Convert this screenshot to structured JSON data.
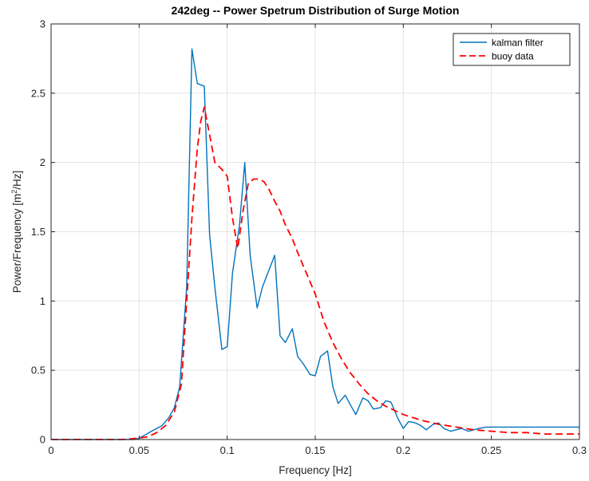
{
  "chart_data": {
    "type": "line",
    "title": "242deg -- Power Spetrum Distribution of Surge Motion",
    "xlabel": "Frequency [Hz]",
    "ylabel_parts": {
      "pre": "Power/Frequency [m",
      "sup": "2",
      "post": "/Hz]"
    },
    "xlim": [
      0,
      0.3
    ],
    "ylim": [
      0,
      3
    ],
    "xticks": [
      "0",
      "0.05",
      "0.1",
      "0.15",
      "0.2",
      "0.25",
      "0.3"
    ],
    "yticks": [
      "0",
      "0.5",
      "1",
      "1.5",
      "2",
      "2.5",
      "3"
    ],
    "grid": true,
    "legend_position": "top-right",
    "series": [
      {
        "name": "kalman filter",
        "color": "#0072BD",
        "style": "solid",
        "x": [
          0.0,
          0.003,
          0.007,
          0.01,
          0.013,
          0.017,
          0.02,
          0.023,
          0.027,
          0.03,
          0.033,
          0.037,
          0.04,
          0.043,
          0.047,
          0.05,
          0.053,
          0.057,
          0.06,
          0.063,
          0.067,
          0.07,
          0.073,
          0.077,
          0.08,
          0.083,
          0.087,
          0.09,
          0.093,
          0.097,
          0.1,
          0.103,
          0.107,
          0.11,
          0.113,
          0.117,
          0.12,
          0.123,
          0.127,
          0.13,
          0.133,
          0.137,
          0.14,
          0.143,
          0.147,
          0.15,
          0.153,
          0.157,
          0.16,
          0.163,
          0.167,
          0.17,
          0.173,
          0.177,
          0.18,
          0.183,
          0.187,
          0.19,
          0.193,
          0.197,
          0.2,
          0.203,
          0.207,
          0.21,
          0.213,
          0.217,
          0.22,
          0.223,
          0.227,
          0.23,
          0.233,
          0.237,
          0.24,
          0.243,
          0.247,
          0.25,
          0.253,
          0.257,
          0.26,
          0.263,
          0.267,
          0.27,
          0.273,
          0.277,
          0.28,
          0.283,
          0.287,
          0.29,
          0.293,
          0.297,
          0.3
        ],
        "y": [
          0.0,
          0.0,
          0.0,
          0.0,
          0.0,
          0.0,
          0.0,
          0.0,
          0.0,
          0.0,
          0.0,
          0.0,
          0.0,
          0.0,
          0.0,
          0.01,
          0.03,
          0.06,
          0.08,
          0.1,
          0.16,
          0.23,
          0.38,
          1.1,
          2.82,
          2.57,
          2.55,
          1.48,
          1.1,
          0.65,
          0.67,
          1.2,
          1.55,
          2.0,
          1.33,
          0.95,
          1.1,
          1.2,
          1.33,
          0.75,
          0.7,
          0.8,
          0.6,
          0.55,
          0.47,
          0.46,
          0.6,
          0.64,
          0.38,
          0.26,
          0.32,
          0.25,
          0.18,
          0.3,
          0.28,
          0.22,
          0.23,
          0.28,
          0.27,
          0.15,
          0.08,
          0.13,
          0.12,
          0.1,
          0.07,
          0.11,
          0.12,
          0.08,
          0.06,
          0.07,
          0.08,
          0.06,
          0.07,
          0.08,
          0.09,
          0.09,
          0.09,
          0.09,
          0.09,
          0.09,
          0.09,
          0.09,
          0.09,
          0.09,
          0.09,
          0.09,
          0.09,
          0.09,
          0.09,
          0.09,
          0.09
        ]
      },
      {
        "name": "buoy data",
        "color": "#FF0000",
        "style": "dashed",
        "x": [
          0.0,
          0.02,
          0.04,
          0.05,
          0.055,
          0.06,
          0.065,
          0.07,
          0.074,
          0.077,
          0.08,
          0.083,
          0.085,
          0.087,
          0.09,
          0.093,
          0.097,
          0.1,
          0.103,
          0.106,
          0.109,
          0.112,
          0.115,
          0.118,
          0.121,
          0.124,
          0.127,
          0.13,
          0.133,
          0.137,
          0.14,
          0.145,
          0.15,
          0.155,
          0.16,
          0.165,
          0.17,
          0.175,
          0.18,
          0.185,
          0.19,
          0.2,
          0.21,
          0.22,
          0.23,
          0.24,
          0.25,
          0.26,
          0.27,
          0.28,
          0.29,
          0.3
        ],
        "y": [
          0.0,
          0.0,
          0.0,
          0.01,
          0.02,
          0.05,
          0.1,
          0.2,
          0.4,
          1.0,
          1.6,
          2.1,
          2.3,
          2.4,
          2.2,
          2.0,
          1.95,
          1.9,
          1.6,
          1.38,
          1.65,
          1.85,
          1.88,
          1.88,
          1.86,
          1.8,
          1.72,
          1.65,
          1.55,
          1.45,
          1.35,
          1.2,
          1.05,
          0.85,
          0.7,
          0.58,
          0.48,
          0.4,
          0.33,
          0.28,
          0.24,
          0.18,
          0.14,
          0.11,
          0.09,
          0.07,
          0.06,
          0.05,
          0.05,
          0.04,
          0.04,
          0.04
        ]
      }
    ]
  }
}
